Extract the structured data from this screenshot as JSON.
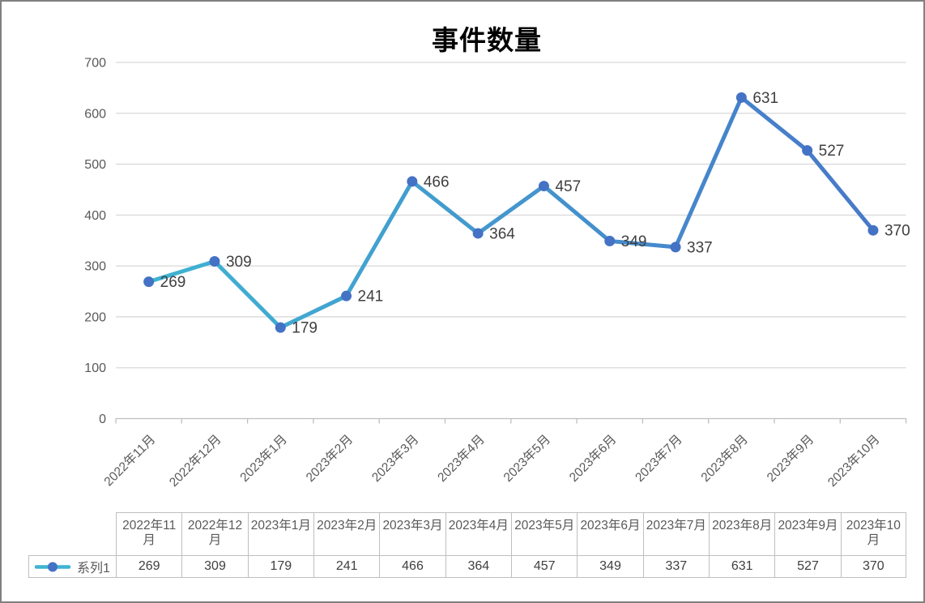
{
  "frame": {
    "background": "#ffffff",
    "border_color": "#808080"
  },
  "chart_data": {
    "type": "line",
    "title": "事件数量",
    "categories": [
      "2022年11月",
      "2022年12月",
      "2023年1月",
      "2023年2月",
      "2023年3月",
      "2023年4月",
      "2023年5月",
      "2023年6月",
      "2023年7月",
      "2023年8月",
      "2023年9月",
      "2023年10月"
    ],
    "series": [
      {
        "name": "系列1",
        "values": [
          269,
          309,
          179,
          241,
          466,
          364,
          457,
          349,
          337,
          631,
          527,
          370
        ]
      }
    ],
    "xlabel": "",
    "ylabel": "",
    "ylim": [
      0,
      700
    ],
    "y_tick_interval": 100,
    "y_tick_labels": [
      "0",
      "100",
      "200",
      "300",
      "400",
      "500",
      "600",
      "700"
    ],
    "grid": "horizontal",
    "data_labels": true,
    "legend_position": "data-table-left",
    "x_label_rotation_deg": -45,
    "colors": {
      "line_gradient_start": "#3fb4d2",
      "line_gradient_end": "#4878c9",
      "marker": "#4472c4",
      "gridline": "#d9d9d9",
      "axis_line": "#bfbfbf",
      "axis_text": "#595959",
      "data_label_text": "#3f3f3f",
      "title_text": "#000000",
      "table_border": "#bfbfbf",
      "table_header_text": "#595959",
      "table_value_text": "#3f3f3f"
    }
  }
}
